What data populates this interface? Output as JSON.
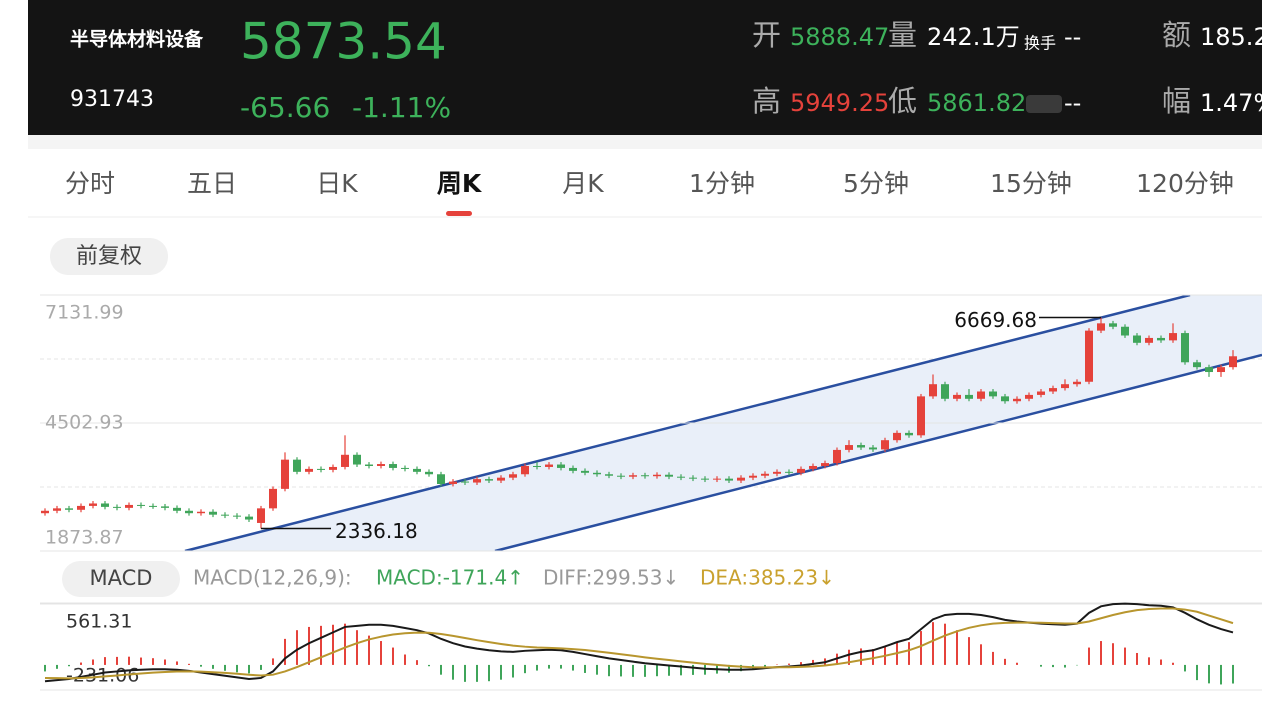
{
  "header": {
    "name": "半导体材料设备",
    "code": "931743",
    "price": "5873.54",
    "change": "-65.66",
    "change_pct": "-1.11%",
    "row1": [
      {
        "label": "开",
        "value": "5888.47"
      },
      {
        "label": "量",
        "value": "242.1万"
      },
      {
        "label": "换手",
        "value": "--"
      },
      {
        "label": "额",
        "value": "185.2"
      }
    ],
    "row2": [
      {
        "label": "高",
        "value": "5949.25"
      },
      {
        "label": "低",
        "value": "5861.82"
      },
      {
        "value": "--"
      },
      {
        "label": "幅",
        "value": "1.47%"
      }
    ]
  },
  "tabs": [
    "分时",
    "五日",
    "日K",
    "周K",
    "月K",
    "1分钟",
    "5分钟",
    "15分钟",
    "120分钟"
  ],
  "active_tab": 3,
  "adjust_button": "前复权",
  "chart": {
    "type": "candlestick",
    "up_color": "#e5423b",
    "down_color": "#3fa55a",
    "ylim": [
      1873.87,
      7131.99
    ],
    "yticks": [
      7131.99,
      4502.93,
      1873.87
    ],
    "open": [
      2650,
      2700,
      2750,
      2720,
      2800,
      2850,
      2780,
      2760,
      2820,
      2800,
      2790,
      2760,
      2700,
      2650,
      2680,
      2620,
      2600,
      2580,
      2450,
      2750,
      3150,
      3750,
      3500,
      3560,
      3540,
      3600,
      3850,
      3650,
      3620,
      3660,
      3580,
      3560,
      3500,
      3450,
      3250,
      3300,
      3280,
      3350,
      3320,
      3380,
      3450,
      3620,
      3600,
      3650,
      3580,
      3520,
      3480,
      3450,
      3420,
      3400,
      3430,
      3410,
      3440,
      3400,
      3380,
      3360,
      3340,
      3360,
      3320,
      3380,
      3420,
      3460,
      3500,
      3480,
      3560,
      3620,
      3680,
      3950,
      4050,
      4000,
      3960,
      4150,
      4300,
      4250,
      5050,
      5300,
      5000,
      5080,
      5000,
      5150,
      5050,
      4950,
      5000,
      5080,
      5150,
      5220,
      5300,
      5350,
      6400,
      6550,
      6480,
      6300,
      6150,
      6250,
      6200,
      6350,
      5750,
      5650,
      5550,
      5650
    ],
    "high": [
      2750,
      2800,
      2800,
      2850,
      2900,
      2900,
      2830,
      2870,
      2870,
      2850,
      2840,
      2810,
      2750,
      2730,
      2730,
      2670,
      2650,
      2630,
      2800,
      3200,
      3900,
      3800,
      3610,
      3610,
      3650,
      4250,
      3900,
      3700,
      3710,
      3710,
      3630,
      3610,
      3550,
      3500,
      3350,
      3350,
      3400,
      3400,
      3430,
      3500,
      3670,
      3700,
      3700,
      3700,
      3630,
      3570,
      3530,
      3500,
      3470,
      3480,
      3480,
      3490,
      3490,
      3450,
      3430,
      3410,
      3410,
      3410,
      3430,
      3470,
      3510,
      3550,
      3550,
      3610,
      3670,
      3730,
      4000,
      4150,
      4100,
      4050,
      4200,
      4350,
      4350,
      5100,
      5500,
      5350,
      5130,
      5200,
      5200,
      5200,
      5100,
      5050,
      5130,
      5200,
      5270,
      5400,
      5400,
      6450,
      6669.68,
      6600,
      6530,
      6350,
      6300,
      6300,
      6550,
      6400,
      5800,
      5700,
      5700,
      6000
    ],
    "low": [
      2600,
      2650,
      2670,
      2670,
      2750,
      2730,
      2710,
      2710,
      2750,
      2740,
      2710,
      2650,
      2600,
      2600,
      2570,
      2550,
      2530,
      2470,
      2336.18,
      2700,
      3100,
      3450,
      3450,
      3490,
      3490,
      3550,
      3600,
      3570,
      3570,
      3530,
      3510,
      3450,
      3400,
      3200,
      3200,
      3230,
      3230,
      3270,
      3270,
      3330,
      3400,
      3550,
      3550,
      3530,
      3470,
      3430,
      3400,
      3370,
      3350,
      3350,
      3360,
      3360,
      3350,
      3330,
      3310,
      3290,
      3290,
      3270,
      3270,
      3330,
      3370,
      3410,
      3430,
      3430,
      3510,
      3570,
      3630,
      3900,
      3950,
      3910,
      3910,
      4100,
      4200,
      4200,
      5000,
      4950,
      4950,
      4950,
      4950,
      5000,
      4900,
      4900,
      4950,
      5030,
      5100,
      5170,
      5250,
      5300,
      6350,
      6430,
      6250,
      6100,
      6100,
      6150,
      6150,
      5700,
      5600,
      5450,
      5450,
      5600
    ],
    "close": [
      2700,
      2750,
      2720,
      2800,
      2850,
      2780,
      2760,
      2820,
      2800,
      2790,
      2760,
      2700,
      2650,
      2680,
      2620,
      2600,
      2580,
      2520,
      2750,
      3150,
      3750,
      3500,
      3560,
      3540,
      3600,
      3850,
      3650,
      3620,
      3660,
      3580,
      3560,
      3500,
      3450,
      3250,
      3300,
      3280,
      3350,
      3320,
      3380,
      3450,
      3620,
      3600,
      3650,
      3580,
      3520,
      3480,
      3450,
      3420,
      3400,
      3430,
      3410,
      3440,
      3400,
      3380,
      3360,
      3340,
      3360,
      3320,
      3380,
      3420,
      3460,
      3500,
      3480,
      3560,
      3620,
      3680,
      3950,
      4050,
      4000,
      3960,
      4150,
      4300,
      4250,
      5050,
      5300,
      5000,
      5080,
      5000,
      5150,
      5050,
      4950,
      5000,
      5080,
      5150,
      5220,
      5300,
      5350,
      6400,
      6550,
      6480,
      6300,
      6150,
      6250,
      6200,
      6350,
      5750,
      5650,
      5550,
      5650,
      5873.54
    ]
  },
  "macd": {
    "title": "MACD",
    "params": "MACD(12,26,9):",
    "legend": [
      {
        "text": "MACD:-171.4↑",
        "color": "#3fa55a"
      },
      {
        "text": "DIFF:299.53↓",
        "color": "#999999"
      },
      {
        "text": "DEA:385.23↓",
        "color": "#c9a12e"
      }
    ],
    "ylim": [
      -231.06,
      561.31
    ],
    "yticks": [
      561.31,
      -231.06
    ],
    "diff_color": "#1a1a1a",
    "dea_color": "#b8962e",
    "up_color": "#e5423b",
    "down_color": "#3fa55a",
    "diff": [
      -150,
      -140,
      -130,
      -110,
      -90,
      -70,
      -60,
      -50,
      -45,
      -40,
      -40,
      -45,
      -55,
      -70,
      -85,
      -100,
      -115,
      -130,
      -120,
      -60,
      60,
      140,
      200,
      250,
      300,
      350,
      360,
      370,
      370,
      360,
      340,
      320,
      290,
      240,
      200,
      170,
      150,
      135,
      125,
      120,
      130,
      135,
      140,
      135,
      120,
      100,
      80,
      60,
      45,
      30,
      15,
      5,
      -5,
      -15,
      -25,
      -35,
      -40,
      -45,
      -45,
      -40,
      -30,
      -20,
      -15,
      -5,
      10,
      25,
      60,
      95,
      120,
      135,
      170,
      210,
      240,
      330,
      420,
      460,
      470,
      470,
      460,
      440,
      415,
      400,
      390,
      380,
      375,
      370,
      380,
      480,
      540,
      560,
      565,
      560,
      550,
      545,
      530,
      480,
      420,
      370,
      330,
      299.53
    ],
    "dea": [
      -120,
      -122,
      -124,
      -121,
      -115,
      -106,
      -97,
      -88,
      -79,
      -71,
      -65,
      -61,
      -60,
      -62,
      -67,
      -73,
      -81,
      -91,
      -97,
      -90,
      -60,
      -20,
      25,
      70,
      115,
      160,
      200,
      235,
      260,
      280,
      292,
      298,
      296,
      285,
      268,
      248,
      228,
      210,
      193,
      178,
      168,
      161,
      157,
      152,
      146,
      137,
      125,
      112,
      98,
      85,
      70,
      57,
      45,
      33,
      21,
      10,
      0,
      -9,
      -16,
      -21,
      -23,
      -22,
      -21,
      -18,
      -13,
      -5,
      8,
      25,
      44,
      62,
      84,
      109,
      135,
      174,
      223,
      270,
      310,
      342,
      365,
      380,
      387,
      390,
      390,
      388,
      385,
      382,
      382,
      400,
      430,
      460,
      485,
      505,
      515,
      520,
      520,
      510,
      490,
      455,
      420,
      385.23
    ],
    "macd": [
      -60,
      -36,
      -12,
      22,
      50,
      72,
      74,
      76,
      68,
      62,
      50,
      32,
      10,
      -16,
      -36,
      -54,
      -68,
      -78,
      -46,
      60,
      240,
      320,
      350,
      360,
      370,
      380,
      320,
      270,
      220,
      160,
      96,
      44,
      -12,
      -90,
      -136,
      -156,
      -156,
      -150,
      -136,
      -116,
      -76,
      -52,
      -34,
      -34,
      -52,
      -74,
      -90,
      -104,
      -106,
      -110,
      -110,
      -104,
      -100,
      -96,
      -92,
      -90,
      -80,
      -72,
      -58,
      -38,
      -14,
      4,
      12,
      26,
      46,
      60,
      104,
      140,
      152,
      146,
      172,
      202,
      210,
      312,
      394,
      380,
      320,
      256,
      190,
      120,
      56,
      20,
      0,
      -16,
      -20,
      -24,
      -4,
      160,
      220,
      200,
      160,
      110,
      70,
      50,
      20,
      -60,
      -140,
      -170,
      -180,
      -171.4
    ]
  }
}
